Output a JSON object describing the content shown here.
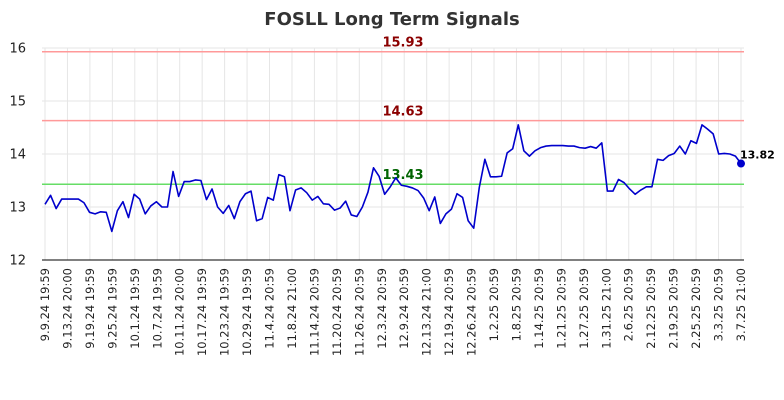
{
  "chart_data": {
    "type": "line",
    "title": "FOSLL Long Term Signals",
    "xlabel": "",
    "ylabel": "",
    "ylim": [
      12,
      16
    ],
    "yticks": [
      12,
      13,
      14,
      15,
      16
    ],
    "x_tick_labels": [
      "9.9.24 19:59",
      "9.13.24 20:00",
      "9.19.24 19:59",
      "9.25.24 19:59",
      "10.1.24 19:59",
      "10.7.24 19:59",
      "10.11.24 20:00",
      "10.17.24 19:59",
      "10.23.24 19:59",
      "10.29.24 19:59",
      "11.4.24 20:59",
      "11.8.24 21:00",
      "11.14.24 20:59",
      "11.20.24 20:59",
      "11.26.24 20:59",
      "12.3.24 20:59",
      "12.9.24 20:59",
      "12.13.24 21:00",
      "12.19.24 20:59",
      "12.26.24 20:59",
      "1.2.25 20:59",
      "1.8.25 20:59",
      "1.14.25 20:59",
      "1.21.25 20:59",
      "1.27.25 20:59",
      "1.31.25 21:00",
      "2.6.25 20:59",
      "2.12.25 20:59",
      "2.19.25 20:59",
      "2.25.25 20:59",
      "3.3.25 20:59",
      "3.7.25 21:00"
    ],
    "grid": true,
    "series": [
      {
        "color": "#0000cc",
        "values": [
          13.05,
          13.22,
          12.97,
          13.15,
          13.15,
          13.15,
          13.15,
          13.08,
          12.9,
          12.87,
          12.91,
          12.9,
          12.54,
          12.93,
          13.1,
          12.8,
          13.24,
          13.15,
          12.87,
          13.02,
          13.1,
          13.0,
          13.0,
          13.67,
          13.2,
          13.48,
          13.48,
          13.51,
          13.5,
          13.14,
          13.34,
          13.0,
          12.88,
          13.03,
          12.78,
          13.1,
          13.25,
          13.3,
          12.74,
          12.78,
          13.18,
          13.13,
          13.61,
          13.57,
          12.93,
          13.32,
          13.36,
          13.27,
          13.13,
          13.2,
          13.06,
          13.05,
          12.94,
          12.98,
          13.11,
          12.85,
          12.82,
          13.0,
          13.28,
          13.74,
          13.58,
          13.24,
          13.38,
          13.55,
          13.41,
          13.39,
          13.36,
          13.31,
          13.17,
          12.93,
          13.19,
          12.69,
          12.87,
          12.96,
          13.25,
          13.18,
          12.74,
          12.6,
          13.37,
          13.9,
          13.57,
          13.57,
          13.58,
          14.02,
          14.1,
          14.55,
          14.06,
          13.96,
          14.06,
          14.12,
          14.15,
          14.16,
          14.16,
          14.16,
          14.15,
          14.15,
          14.12,
          14.11,
          14.14,
          14.11,
          14.21,
          13.3,
          13.3,
          13.52,
          13.46,
          13.34,
          13.24,
          13.32,
          13.38,
          13.38,
          13.9,
          13.88,
          13.97,
          14.01,
          14.15,
          14.0,
          14.25,
          14.2,
          14.55,
          14.47,
          14.38,
          14.0,
          14.01,
          14.0,
          13.96,
          13.82
        ]
      }
    ],
    "reference_lines": [
      {
        "value": 15.93,
        "label": "15.93",
        "color": "#ff9999",
        "label_color": "#8b0000"
      },
      {
        "value": 14.63,
        "label": "14.63",
        "color": "#ff9999",
        "label_color": "#8b0000"
      },
      {
        "value": 13.43,
        "label": "13.43",
        "color": "#66dd66",
        "label_color": "#006400"
      }
    ],
    "last_value_label": "13.82"
  }
}
